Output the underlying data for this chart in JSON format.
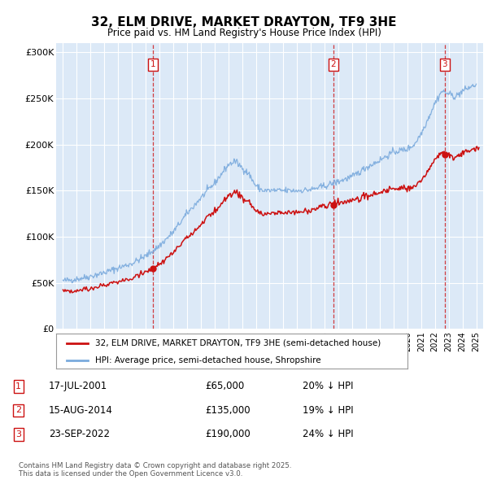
{
  "title": "32, ELM DRIVE, MARKET DRAYTON, TF9 3HE",
  "subtitle": "Price paid vs. HM Land Registry's House Price Index (HPI)",
  "bg_color": "#dce9f7",
  "red_color": "#cc1111",
  "blue_color": "#7aaadd",
  "red_line_label": "32, ELM DRIVE, MARKET DRAYTON, TF9 3HE (semi-detached house)",
  "blue_line_label": "HPI: Average price, semi-detached house, Shropshire",
  "transactions": [
    {
      "num": 1,
      "date": "17-JUL-2001",
      "price": 65000,
      "pct": "20%",
      "dir": "↓",
      "year_x": 2001.54
    },
    {
      "num": 2,
      "date": "15-AUG-2014",
      "price": 135000,
      "pct": "19%",
      "dir": "↓",
      "year_x": 2014.62
    },
    {
      "num": 3,
      "date": "23-SEP-2022",
      "price": 190000,
      "pct": "24%",
      "dir": "↓",
      "year_x": 2022.72
    }
  ],
  "footer": "Contains HM Land Registry data © Crown copyright and database right 2025.\nThis data is licensed under the Open Government Licence v3.0.",
  "ylim": [
    0,
    310000
  ],
  "yticks": [
    0,
    50000,
    100000,
    150000,
    200000,
    250000,
    300000
  ],
  "ytick_labels": [
    "£0",
    "£50K",
    "£100K",
    "£150K",
    "£200K",
    "£250K",
    "£300K"
  ],
  "xmin": 1994.5,
  "xmax": 2025.5
}
